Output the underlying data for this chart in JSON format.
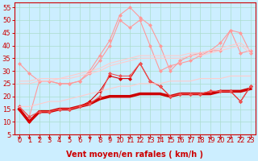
{
  "xlabel": "Vent moyen/en rafales ( km/h )",
  "background_color": "#cceeff",
  "grid_color": "#aaddcc",
  "xlim": [
    -0.5,
    23.5
  ],
  "ylim": [
    5,
    57
  ],
  "yticks": [
    5,
    10,
    15,
    20,
    25,
    30,
    35,
    40,
    45,
    50,
    55
  ],
  "xticks": [
    0,
    1,
    2,
    3,
    4,
    5,
    6,
    7,
    8,
    9,
    10,
    11,
    12,
    13,
    14,
    15,
    16,
    17,
    18,
    19,
    20,
    21,
    22,
    23
  ],
  "series": [
    {
      "x": [
        0,
        1,
        2,
        3,
        4,
        5,
        6,
        7,
        8,
        9,
        10,
        11,
        12,
        13,
        14,
        15,
        16,
        17,
        18,
        19,
        20,
        21,
        22,
        23
      ],
      "y": [
        15,
        10,
        14,
        14,
        15,
        15,
        16,
        17,
        19,
        20,
        20,
        20,
        21,
        21,
        21,
        20,
        21,
        21,
        21,
        21,
        22,
        22,
        22,
        23
      ],
      "color": "#cc0000",
      "lw": 2.5,
      "marker": null,
      "ms": 0,
      "alpha": 1.0
    },
    {
      "x": [
        0,
        1,
        2,
        3,
        4,
        5,
        6,
        7,
        8,
        9,
        10,
        11,
        12,
        13,
        14,
        15,
        16,
        17,
        18,
        19,
        20,
        21,
        22,
        23
      ],
      "y": [
        15,
        10,
        14,
        14,
        15,
        15,
        16,
        18,
        22,
        28,
        27,
        27,
        33,
        26,
        24,
        20,
        21,
        21,
        21,
        22,
        22,
        22,
        18,
        24
      ],
      "color": "#dd0000",
      "lw": 0.8,
      "marker": "D",
      "ms": 2.0,
      "alpha": 1.0
    },
    {
      "x": [
        0,
        1,
        2,
        3,
        4,
        5,
        6,
        7,
        8,
        9,
        10,
        11,
        12,
        13,
        14,
        15,
        16,
        17,
        18,
        19,
        20,
        21,
        22,
        23
      ],
      "y": [
        16,
        12,
        26,
        26,
        25,
        25,
        26,
        30,
        36,
        42,
        52,
        55,
        51,
        48,
        40,
        30,
        34,
        36,
        37,
        38,
        38,
        46,
        45,
        37
      ],
      "color": "#ff9999",
      "lw": 0.8,
      "marker": "D",
      "ms": 2.0,
      "alpha": 1.0
    },
    {
      "x": [
        0,
        1,
        2,
        3,
        4,
        5,
        6,
        7,
        8,
        9,
        10,
        11,
        12,
        13,
        14,
        15,
        16,
        17,
        18,
        19,
        20,
        21,
        22,
        23
      ],
      "y": [
        33,
        29,
        26,
        26,
        25,
        25,
        26,
        29,
        34,
        40,
        50,
        47,
        50,
        40,
        30,
        32,
        33,
        34,
        36,
        38,
        41,
        46,
        37,
        38
      ],
      "color": "#ff9999",
      "lw": 0.8,
      "marker": "D",
      "ms": 2.0,
      "alpha": 1.0
    },
    {
      "x": [
        0,
        1,
        2,
        3,
        4,
        5,
        6,
        7,
        8,
        9,
        10,
        11,
        12,
        13,
        14,
        15,
        16,
        17,
        18,
        19,
        20,
        21,
        22,
        23
      ],
      "y": [
        16,
        12,
        14,
        14,
        15,
        15,
        16,
        17,
        20,
        29,
        28,
        28,
        33,
        26,
        24,
        20,
        21,
        21,
        21,
        22,
        22,
        22,
        18,
        24
      ],
      "color": "#ee5555",
      "lw": 0.8,
      "marker": "D",
      "ms": 2.0,
      "alpha": 1.0
    },
    {
      "x": [
        0,
        1,
        2,
        3,
        4,
        5,
        6,
        7,
        8,
        9,
        10,
        11,
        12,
        13,
        14,
        15,
        16,
        17,
        18,
        19,
        20,
        21,
        22,
        23
      ],
      "y": [
        26,
        26,
        27,
        27,
        27,
        28,
        29,
        30,
        31,
        33,
        34,
        35,
        36,
        36,
        36,
        36,
        36,
        37,
        37,
        38,
        39,
        40,
        41,
        38
      ],
      "color": "#ffcccc",
      "lw": 0.8,
      "marker": null,
      "ms": 0,
      "alpha": 1.0
    },
    {
      "x": [
        0,
        1,
        2,
        3,
        4,
        5,
        6,
        7,
        8,
        9,
        10,
        11,
        12,
        13,
        14,
        15,
        16,
        17,
        18,
        19,
        20,
        21,
        22,
        23
      ],
      "y": [
        25,
        25,
        26,
        26,
        27,
        27,
        28,
        29,
        30,
        32,
        33,
        34,
        35,
        35,
        35,
        35,
        35,
        36,
        36,
        37,
        38,
        39,
        40,
        37
      ],
      "color": "#ffcccc",
      "lw": 0.8,
      "marker": null,
      "ms": 0,
      "alpha": 1.0
    },
    {
      "x": [
        0,
        1,
        2,
        3,
        4,
        5,
        6,
        7,
        8,
        9,
        10,
        11,
        12,
        13,
        14,
        15,
        16,
        17,
        18,
        19,
        20,
        21,
        22,
        23
      ],
      "y": [
        16,
        16,
        17,
        18,
        18,
        19,
        20,
        21,
        22,
        23,
        24,
        24,
        25,
        25,
        25,
        26,
        26,
        26,
        27,
        27,
        27,
        28,
        28,
        28
      ],
      "color": "#ffcccc",
      "lw": 0.8,
      "marker": null,
      "ms": 0,
      "alpha": 1.0
    }
  ],
  "arrow_color": "#cc0000",
  "xlabel_color": "#cc0000",
  "xlabel_fontsize": 7,
  "tick_fontsize": 6,
  "tick_color": "#cc0000"
}
